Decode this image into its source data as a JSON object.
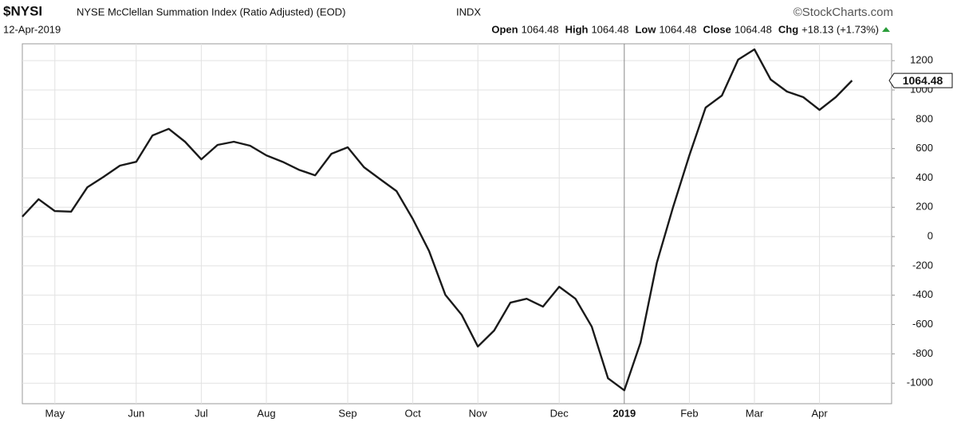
{
  "header": {
    "symbol": "$NYSI",
    "name": "NYSE McClellan Summation Index (Ratio Adjusted) (EOD)",
    "exchange": "INDX",
    "brand": "©StockCharts.com",
    "date": "12-Apr-2019",
    "quote": [
      {
        "label": "Open",
        "value": "1064.48"
      },
      {
        "label": "High",
        "value": "1064.48"
      },
      {
        "label": "Low",
        "value": "1064.48"
      },
      {
        "label": "Close",
        "value": "1064.48"
      },
      {
        "label": "Chg",
        "value": "+18.13 (+1.73%)"
      }
    ]
  },
  "chart_data": {
    "type": "line",
    "color": "#1a1a1a",
    "grid": true,
    "categories": [
      null,
      null,
      "May",
      null,
      null,
      null,
      null,
      "Jun",
      null,
      null,
      null,
      "Jul",
      null,
      null,
      null,
      "Aug",
      null,
      null,
      null,
      null,
      "Sep",
      null,
      null,
      null,
      "Oct",
      null,
      null,
      null,
      "Nov",
      null,
      null,
      null,
      null,
      "Dec",
      null,
      null,
      null,
      "2019",
      null,
      null,
      null,
      "Feb",
      null,
      null,
      null,
      "Mar",
      null,
      null,
      null,
      "Apr",
      null,
      null
    ],
    "values": [
      136,
      255,
      174,
      170,
      337,
      408,
      484,
      510,
      690,
      735,
      647,
      527,
      625,
      647,
      620,
      554,
      510,
      456,
      418,
      565,
      609,
      473,
      391,
      310,
      120,
      -98,
      -397,
      -533,
      -750,
      -641,
      -451,
      -424,
      -478,
      -342,
      -424,
      -614,
      -967,
      -1049,
      -723,
      -179,
      201,
      554,
      880,
      962,
      1207,
      1277,
      1071,
      989,
      951,
      864,
      951,
      1064.48
    ],
    "ylim": [
      -1140,
      1315
    ],
    "yticks": [
      -1000,
      -800,
      -600,
      -400,
      -200,
      0,
      200,
      400,
      600,
      800,
      1000,
      1200
    ]
  }
}
